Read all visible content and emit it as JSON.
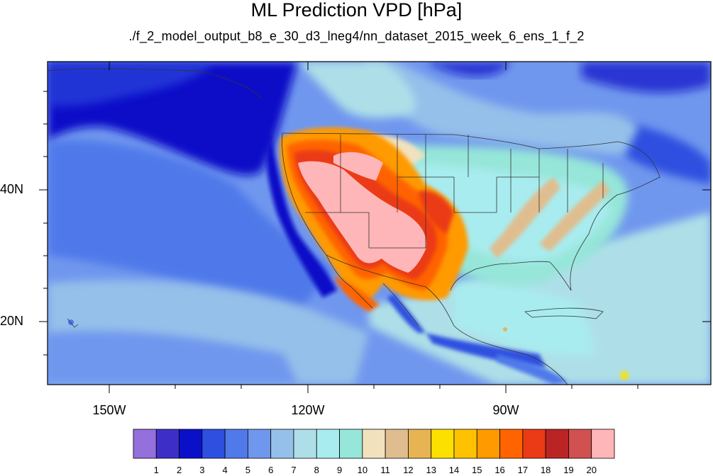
{
  "title": "ML Prediction VPD [hPa]",
  "subtitle": "./f_2_model_output_b8_e_30_d3_lneg4/nn_dataset_2015_week_6_ens_1_f_2",
  "map": {
    "lat_labels": [
      "40N",
      "20N"
    ],
    "lon_labels": [
      "150W",
      "120W",
      "90W"
    ],
    "extent": {
      "lon_min": -160,
      "lon_max": -61,
      "lat_min": 10,
      "lat_max": 59
    }
  },
  "colorbar": {
    "labels": [
      "1",
      "2",
      "3",
      "4",
      "5",
      "6",
      "7",
      "8",
      "9",
      "10",
      "11",
      "12",
      "13",
      "14",
      "15",
      "16",
      "17",
      "18",
      "19",
      "20"
    ],
    "colors": [
      "#9370db",
      "#3e2ec8",
      "#0a10c8",
      "#2f4fe0",
      "#5079ea",
      "#7097ee",
      "#95c0ea",
      "#aedfe8",
      "#a8ecef",
      "#96e6d9",
      "#f2e1bd",
      "#e0bd8f",
      "#e7b453",
      "#fce100",
      "#ffc200",
      "#ff9a00",
      "#ff6400",
      "#ea3a16",
      "#bb2424",
      "#d15050",
      "#ffb6b8"
    ]
  }
}
